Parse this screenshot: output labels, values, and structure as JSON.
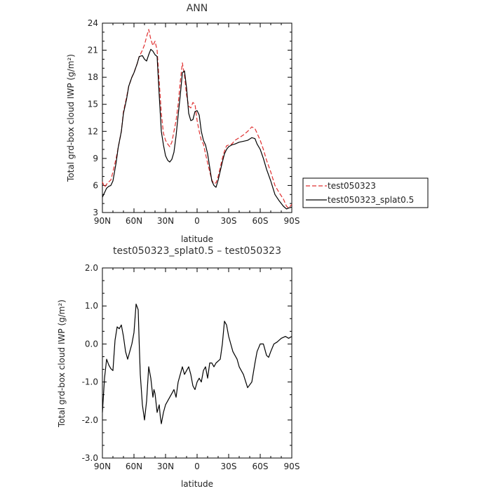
{
  "chart_data": [
    {
      "type": "line",
      "title": "ANN",
      "xlabel": "latitude",
      "ylabel": "Total grd-box cloud IWP (g/m²)",
      "xlim": [
        90,
        -90
      ],
      "ylim": [
        3,
        24
      ],
      "x_ticks": [
        "90N",
        "60N",
        "30N",
        "0",
        "30S",
        "60S",
        "90S"
      ],
      "y_ticks": [
        "3",
        "6",
        "9",
        "12",
        "15",
        "18",
        "21",
        "24"
      ],
      "legend_position": "right-outside",
      "series": [
        {
          "name": "test050323",
          "color": "#e03030",
          "style": "dashed",
          "x": [
            90,
            88,
            85,
            82,
            80,
            77,
            75,
            72,
            70,
            67,
            65,
            62,
            60,
            57,
            55,
            52,
            50,
            48,
            46,
            44,
            42,
            40,
            38,
            36,
            34,
            32,
            30,
            28,
            26,
            24,
            22,
            20,
            18,
            16,
            14,
            12,
            10,
            8,
            6,
            4,
            2,
            0,
            -2,
            -4,
            -6,
            -8,
            -10,
            -12,
            -14,
            -16,
            -18,
            -20,
            -22,
            -24,
            -26,
            -28,
            -30,
            -33,
            -36,
            -40,
            -44,
            -48,
            -52,
            -55,
            -57,
            -60,
            -63,
            -66,
            -70,
            -74,
            -78,
            -82,
            -85,
            -87,
            -90
          ],
          "y": [
            6.4,
            5.8,
            6.3,
            6.6,
            7.5,
            9.0,
            10.2,
            12.0,
            14.2,
            15.8,
            17.0,
            18.0,
            18.5,
            19.5,
            20.3,
            21.0,
            21.6,
            22.5,
            23.3,
            22.2,
            21.5,
            22.0,
            21.0,
            17.5,
            14.0,
            11.8,
            11.0,
            10.6,
            10.3,
            10.8,
            12.0,
            13.2,
            15.0,
            17.5,
            19.6,
            18.2,
            16.0,
            14.8,
            14.6,
            15.2,
            15.0,
            13.2,
            12.0,
            11.0,
            10.6,
            9.5,
            8.5,
            7.5,
            6.6,
            6.2,
            6.3,
            7.0,
            8.0,
            9.0,
            9.8,
            10.4,
            10.5,
            10.6,
            11.0,
            11.3,
            11.6,
            12.0,
            12.5,
            12.3,
            11.8,
            11.0,
            10.0,
            8.8,
            7.5,
            6.0,
            5.2,
            4.5,
            3.7,
            3.5,
            3.9
          ]
        },
        {
          "name": "test050323_splat0.5",
          "color": "#000000",
          "style": "solid",
          "x": [
            90,
            88,
            86,
            84,
            82,
            80,
            77,
            75,
            72,
            70,
            67,
            65,
            62,
            60,
            57,
            55,
            52,
            50,
            48,
            46,
            44,
            42,
            40,
            38,
            36,
            34,
            32,
            30,
            28,
            26,
            24,
            22,
            20,
            18,
            16,
            14,
            12,
            10,
            8,
            6,
            4,
            2,
            0,
            -2,
            -4,
            -6,
            -8,
            -10,
            -12,
            -14,
            -16,
            -18,
            -20,
            -22,
            -24,
            -26,
            -28,
            -30,
            -33,
            -36,
            -40,
            -44,
            -48,
            -52,
            -55,
            -57,
            -60,
            -63,
            -66,
            -70,
            -74,
            -78,
            -82,
            -85,
            -87,
            -90
          ],
          "y": [
            4.7,
            5.2,
            5.7,
            5.9,
            6.0,
            6.5,
            8.5,
            10.2,
            12.0,
            14.0,
            15.6,
            17.0,
            18.0,
            18.5,
            19.5,
            20.3,
            20.4,
            20.0,
            19.8,
            20.5,
            21.1,
            20.9,
            20.5,
            20.3,
            16.0,
            12.0,
            10.5,
            9.3,
            8.8,
            8.6,
            8.9,
            9.7,
            11.5,
            13.8,
            16.0,
            18.5,
            18.7,
            16.8,
            14.0,
            13.2,
            13.3,
            14.2,
            14.3,
            13.8,
            12.0,
            11.0,
            10.5,
            9.5,
            8.0,
            6.5,
            6.0,
            5.8,
            6.6,
            7.6,
            8.6,
            9.5,
            10.0,
            10.3,
            10.5,
            10.6,
            10.8,
            10.9,
            11.0,
            11.3,
            11.2,
            10.6,
            10.0,
            9.0,
            7.8,
            6.5,
            5.0,
            4.3,
            3.7,
            3.4,
            3.5,
            3.6
          ]
        }
      ]
    },
    {
      "type": "line",
      "title": "test050323_splat0.5 – test050323",
      "xlabel": "latitude",
      "ylabel": "Total grd-box cloud IWP (g/m²)",
      "xlim": [
        90,
        -90
      ],
      "ylim": [
        -3.0,
        2.0
      ],
      "x_ticks": [
        "90N",
        "60N",
        "30N",
        "0",
        "30S",
        "60S",
        "90S"
      ],
      "y_ticks": [
        "-3.0",
        "-2.0",
        "-1.0",
        "0.0",
        "1.0",
        "2.0"
      ],
      "series": [
        {
          "color": "#000000",
          "style": "solid",
          "x": [
            90,
            88,
            86,
            84,
            82,
            80,
            78,
            76,
            74,
            72,
            70,
            68,
            66,
            64,
            62,
            60,
            58,
            56,
            55,
            54,
            52,
            50,
            48,
            46,
            44,
            42,
            41,
            40,
            38,
            36,
            35,
            34,
            32,
            30,
            28,
            26,
            24,
            22,
            20,
            18,
            16,
            14,
            12,
            10,
            8,
            6,
            4,
            2,
            0,
            -2,
            -4,
            -6,
            -8,
            -10,
            -12,
            -14,
            -16,
            -18,
            -20,
            -22,
            -24,
            -26,
            -28,
            -30,
            -32,
            -34,
            -36,
            -38,
            -40,
            -44,
            -48,
            -52,
            -55,
            -57,
            -60,
            -63,
            -66,
            -68,
            -70,
            -73,
            -76,
            -80,
            -84,
            -87,
            -90
          ],
          "y": [
            -1.8,
            -0.9,
            -0.4,
            -0.55,
            -0.65,
            -0.7,
            0.1,
            0.45,
            0.4,
            0.5,
            0.2,
            -0.2,
            -0.4,
            -0.2,
            0.0,
            0.3,
            1.05,
            0.9,
            0.0,
            -0.8,
            -1.6,
            -2.0,
            -1.5,
            -0.6,
            -0.9,
            -1.4,
            -1.2,
            -1.3,
            -1.8,
            -1.6,
            -1.9,
            -2.1,
            -1.8,
            -1.6,
            -1.5,
            -1.4,
            -1.3,
            -1.2,
            -1.4,
            -1.0,
            -0.8,
            -0.6,
            -0.8,
            -0.7,
            -0.6,
            -0.8,
            -1.1,
            -1.2,
            -1.0,
            -0.9,
            -1.0,
            -0.7,
            -0.6,
            -0.9,
            -0.5,
            -0.5,
            -0.6,
            -0.5,
            -0.45,
            -0.4,
            0.0,
            0.6,
            0.5,
            0.2,
            0.0,
            -0.2,
            -0.3,
            -0.4,
            -0.6,
            -0.8,
            -1.15,
            -1.0,
            -0.5,
            -0.2,
            0.0,
            0.0,
            -0.3,
            -0.35,
            -0.2,
            0.0,
            0.05,
            0.15,
            0.2,
            0.15,
            0.2
          ]
        }
      ]
    }
  ]
}
